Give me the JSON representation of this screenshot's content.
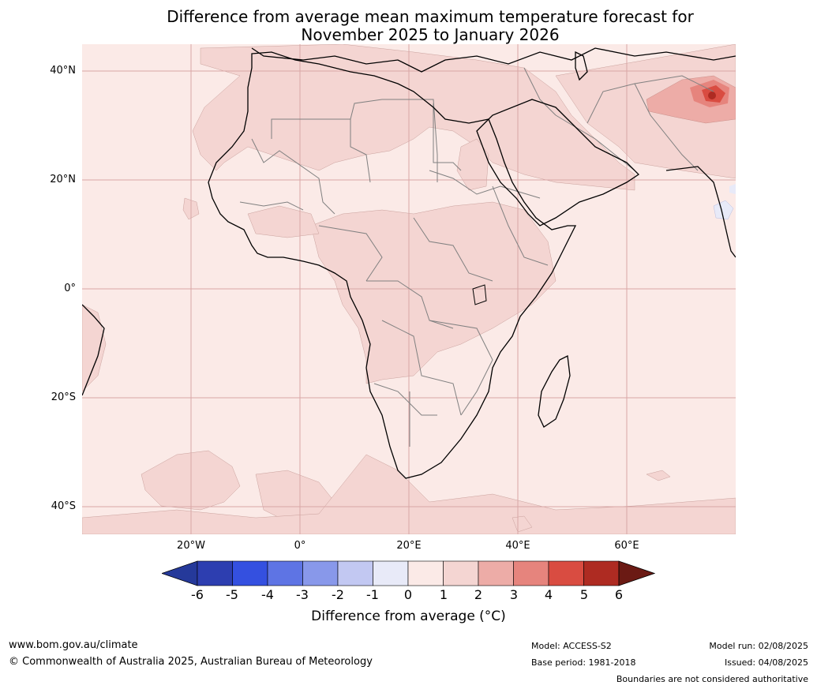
{
  "title_line1": "Difference from average mean maximum temperature forecast for",
  "title_line2": "November 2025 to January 2026",
  "map": {
    "region": "Africa and Middle East",
    "lat_labels": [
      "40°N",
      "20°N",
      "0°",
      "20°S",
      "40°S"
    ],
    "lon_labels": [
      "20°W",
      "0°",
      "20°E",
      "40°E",
      "60°E"
    ],
    "colors": {
      "base_0_1": "#fbeae7",
      "band_1_2": "#f4d5d2",
      "band_2_3": "#edaca7",
      "band_3_4": "#e6847d",
      "band_4_5": "#d94c41",
      "band_5_6": "#ae2b22",
      "band_neg1_0": "#e8eaf8",
      "land_border": "#000000",
      "country_border": "#808080",
      "gridline": "#d9a6a6"
    }
  },
  "colorbar": {
    "ticks": [
      "-6",
      "-5",
      "-4",
      "-3",
      "-2",
      "-1",
      "0",
      "1",
      "2",
      "3",
      "4",
      "5",
      "6"
    ],
    "colors": [
      "#25399a",
      "#2d3eb0",
      "#3450e0",
      "#5e74e4",
      "#8898ea",
      "#c2c8f2",
      "#e8eaf8",
      "#fbeae7",
      "#f4d5d2",
      "#edaca7",
      "#e6847d",
      "#d94c41",
      "#ae2b22",
      "#6b1a14"
    ],
    "label": "Difference from average ($^\\circ$C)",
    "label_display": "Difference from average (°C)"
  },
  "footer": {
    "website": "www.bom.gov.au/climate",
    "copyright": "© Commonwealth of Australia 2025, Australian Bureau of Meteorology",
    "model": "Model: ACCESS-S2",
    "base_period": "Base period: 1981-2018",
    "model_run": "Model run: 02/08/2025",
    "issued": "Issued: 04/08/2025",
    "disclaimer": "Boundaries are not considered authoritative"
  }
}
